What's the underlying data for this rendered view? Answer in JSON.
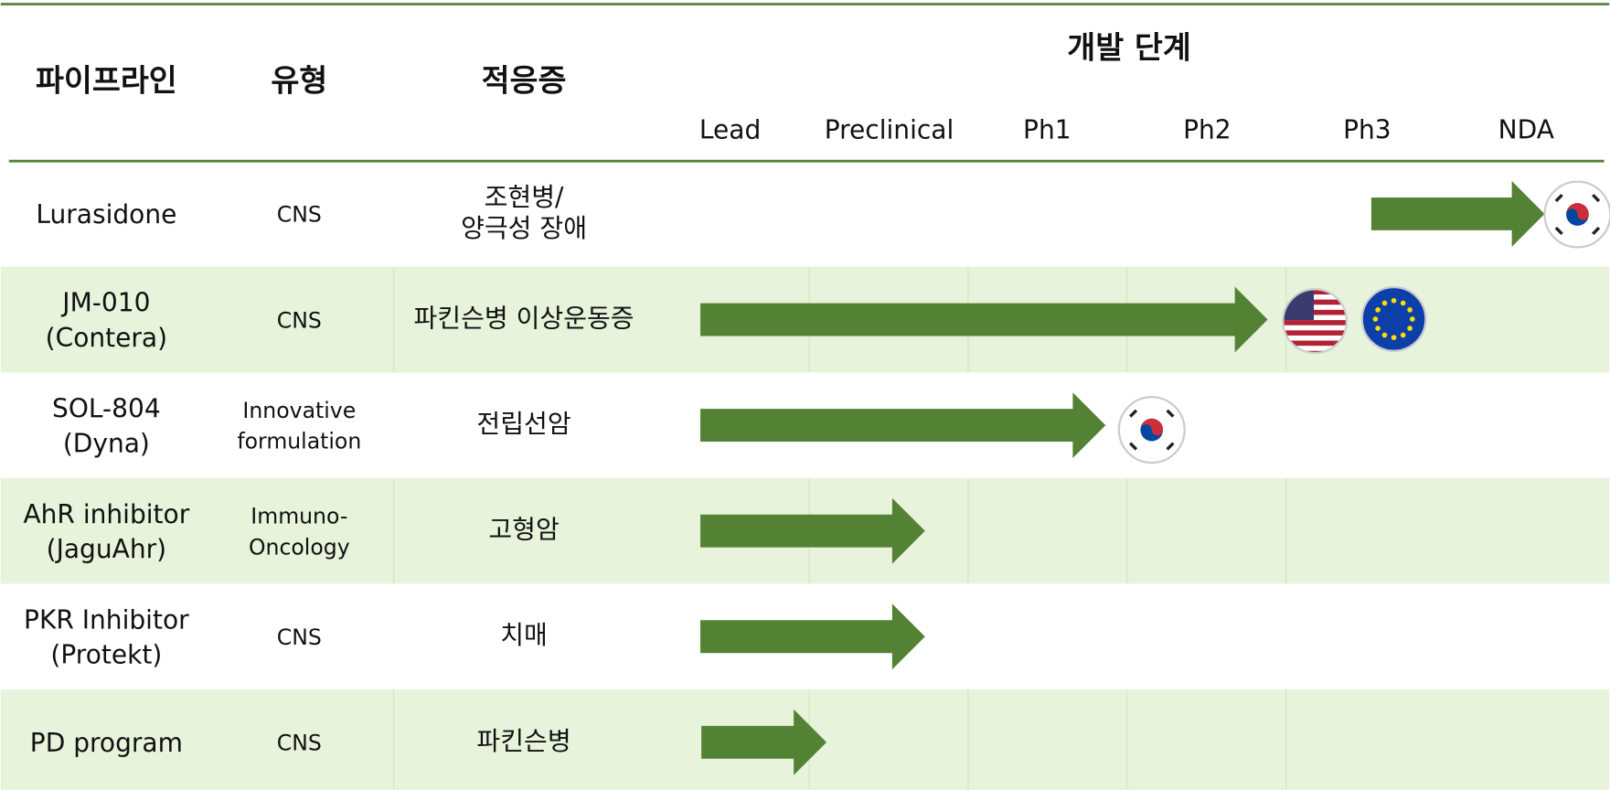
{
  "header": {
    "pipeline": "파이프라인",
    "type": "유형",
    "indication": "적응증",
    "stage_title": "개발 단계",
    "stages": [
      "Lead",
      "Preclinical",
      "Ph1",
      "Ph2",
      "Ph3",
      "NDA"
    ]
  },
  "rows": [
    {
      "name": [
        "Lurasidone"
      ],
      "type": [
        "CNS"
      ],
      "indication": [
        "조현병/",
        "양극성 장애"
      ]
    },
    {
      "name": [
        "JM-010",
        "(Contera)"
      ],
      "type": [
        "CNS"
      ],
      "indication": [
        "파킨슨병 이상운동증"
      ]
    },
    {
      "name": [
        "SOL-804",
        "(Dyna)"
      ],
      "type": [
        "Innovative",
        "formulation"
      ],
      "indication": [
        "전립선암"
      ]
    },
    {
      "name": [
        "AhR inhibitor",
        "(JaguAhr)"
      ],
      "type": [
        "Immuno-",
        "Oncology"
      ],
      "indication": [
        "고형암"
      ]
    },
    {
      "name": [
        "PKR Inhibitor",
        "(Protekt)"
      ],
      "type": [
        "CNS"
      ],
      "indication": [
        "치매"
      ]
    },
    {
      "name": [
        "PD program"
      ],
      "type": [
        "CNS"
      ],
      "indication": [
        "파킨슨병"
      ]
    }
  ]
}
